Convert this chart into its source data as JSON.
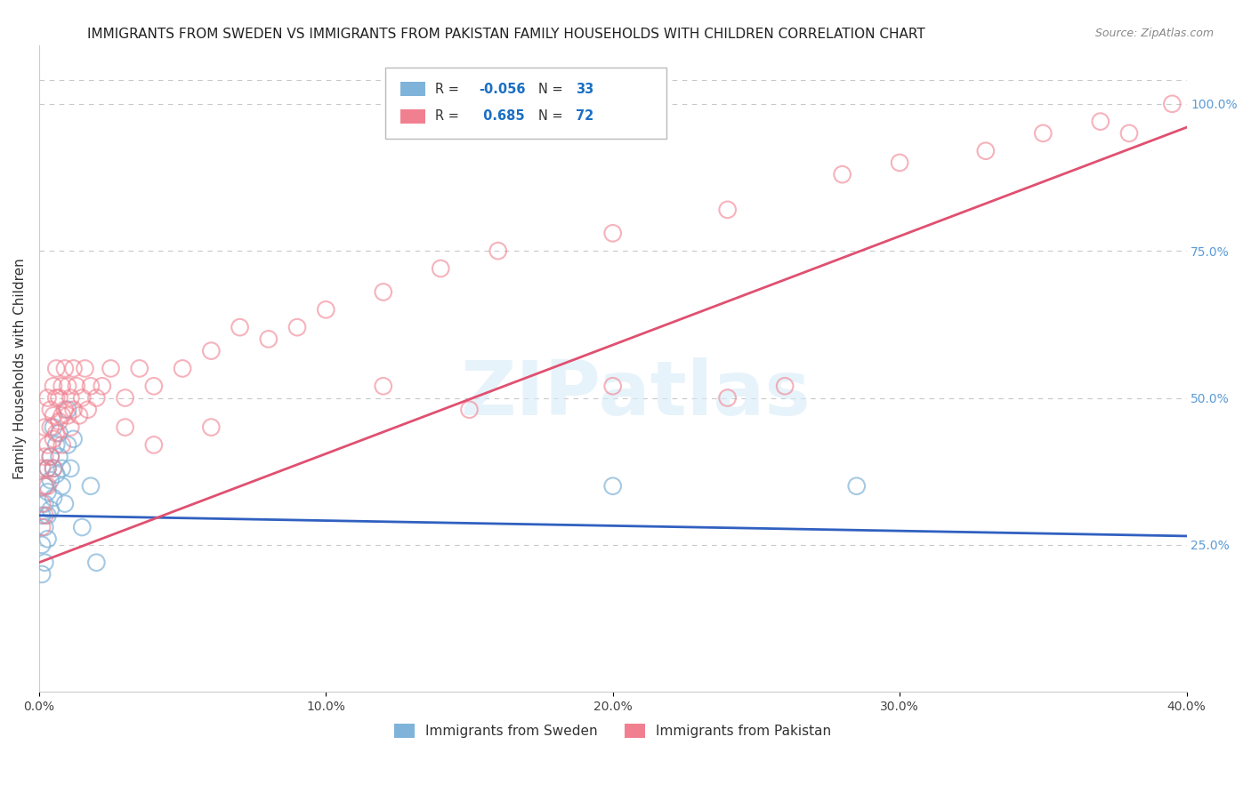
{
  "title": "IMMIGRANTS FROM SWEDEN VS IMMIGRANTS FROM PAKISTAN FAMILY HOUSEHOLDS WITH CHILDREN CORRELATION CHART",
  "source": "Source: ZipAtlas.com",
  "ylabel": "Family Households with Children",
  "xlim": [
    0.0,
    0.4
  ],
  "ylim": [
    0.0,
    1.1
  ],
  "xticks": [
    0.0,
    0.1,
    0.2,
    0.3,
    0.4
  ],
  "xtick_labels": [
    "0.0%",
    "10.0%",
    "20.0%",
    "30.0%",
    "40.0%"
  ],
  "yticks_right": [
    0.25,
    0.5,
    0.75,
    1.0
  ],
  "ytick_right_labels": [
    "25.0%",
    "50.0%",
    "75.0%",
    "100.0%"
  ],
  "sweden_color": "#7fb3d9",
  "pakistan_color": "#f08090",
  "sweden_line_color": "#3060c0",
  "pakistan_line_color": "#e05070",
  "sweden_scatter": {
    "x": [
      0.001,
      0.001,
      0.001,
      0.002,
      0.002,
      0.002,
      0.002,
      0.003,
      0.003,
      0.003,
      0.003,
      0.004,
      0.004,
      0.004,
      0.005,
      0.005,
      0.005,
      0.006,
      0.006,
      0.007,
      0.007,
      0.008,
      0.008,
      0.009,
      0.01,
      0.01,
      0.011,
      0.012,
      0.015,
      0.018,
      0.02,
      0.2,
      0.285
    ],
    "y": [
      0.3,
      0.25,
      0.2,
      0.35,
      0.32,
      0.28,
      0.22,
      0.38,
      0.34,
      0.3,
      0.26,
      0.4,
      0.36,
      0.31,
      0.45,
      0.38,
      0.33,
      0.42,
      0.37,
      0.44,
      0.4,
      0.38,
      0.35,
      0.32,
      0.48,
      0.42,
      0.38,
      0.43,
      0.28,
      0.35,
      0.22,
      0.35,
      0.35
    ]
  },
  "pakistan_scatter": {
    "x": [
      0.001,
      0.001,
      0.001,
      0.002,
      0.002,
      0.002,
      0.002,
      0.003,
      0.003,
      0.003,
      0.003,
      0.004,
      0.004,
      0.004,
      0.005,
      0.005,
      0.005,
      0.005,
      0.006,
      0.006,
      0.006,
      0.007,
      0.007,
      0.008,
      0.008,
      0.008,
      0.009,
      0.009,
      0.01,
      0.01,
      0.011,
      0.011,
      0.012,
      0.012,
      0.013,
      0.014,
      0.015,
      0.016,
      0.017,
      0.018,
      0.02,
      0.022,
      0.025,
      0.03,
      0.035,
      0.04,
      0.05,
      0.06,
      0.07,
      0.08,
      0.09,
      0.1,
      0.12,
      0.14,
      0.16,
      0.2,
      0.24,
      0.28,
      0.3,
      0.33,
      0.35,
      0.37,
      0.38,
      0.395,
      0.12,
      0.15,
      0.2,
      0.24,
      0.26,
      0.03,
      0.04,
      0.06
    ],
    "y": [
      0.32,
      0.38,
      0.28,
      0.4,
      0.35,
      0.3,
      0.45,
      0.42,
      0.38,
      0.35,
      0.5,
      0.45,
      0.48,
      0.4,
      0.52,
      0.47,
      0.43,
      0.38,
      0.5,
      0.44,
      0.55,
      0.5,
      0.46,
      0.52,
      0.47,
      0.42,
      0.55,
      0.48,
      0.52,
      0.47,
      0.5,
      0.45,
      0.55,
      0.48,
      0.52,
      0.47,
      0.5,
      0.55,
      0.48,
      0.52,
      0.5,
      0.52,
      0.55,
      0.5,
      0.55,
      0.52,
      0.55,
      0.58,
      0.62,
      0.6,
      0.62,
      0.65,
      0.68,
      0.72,
      0.75,
      0.78,
      0.82,
      0.88,
      0.9,
      0.92,
      0.95,
      0.97,
      0.95,
      1.0,
      0.52,
      0.48,
      0.52,
      0.5,
      0.52,
      0.45,
      0.42,
      0.45
    ]
  },
  "sweden_line": {
    "x0": 0.0,
    "y0": 0.3,
    "x1": 0.4,
    "y1": 0.265
  },
  "pakistan_line": {
    "x0": 0.0,
    "y0": 0.22,
    "x1": 0.4,
    "y1": 0.96
  },
  "watermark": "ZIPatlas",
  "background_color": "#ffffff",
  "grid_color": "#c8c8c8",
  "title_fontsize": 11,
  "axis_label_fontsize": 11,
  "tick_fontsize": 10,
  "legend_R_color": "#1a6fc4",
  "right_axis_color": "#5b9bd5"
}
